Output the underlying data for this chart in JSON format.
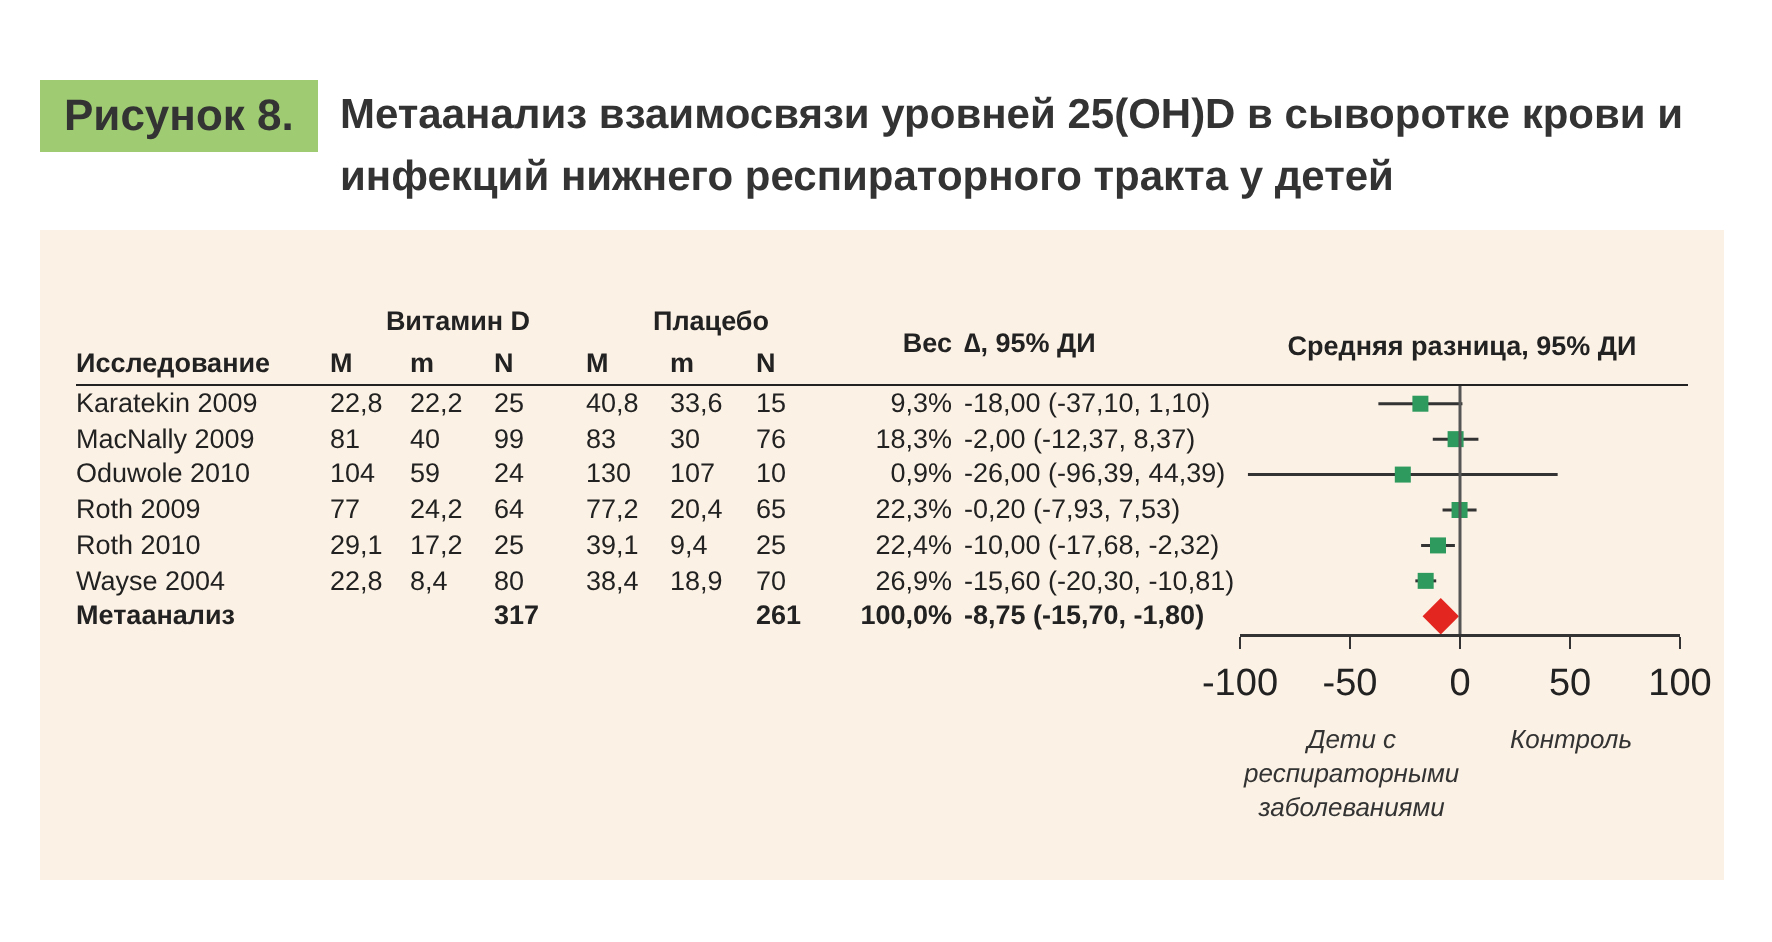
{
  "chart_data": [
    {
      "type": "other",
      "title": "Метаанализ взаимосвязи уровней 25(OH)D в сыворотке крови и инфекций нижнего респираторного тракта у детей",
      "annotations": [
        "Рисунок 8.",
        "Витамин D",
        "Плацебо"
      ],
      "categories": [
        "Исследование",
        "M",
        "m",
        "N",
        "M",
        "m",
        "N",
        "Вес",
        "∆, 95% ДИ"
      ],
      "cells": [
        [
          "Karatekin 2009",
          "22,8",
          "22,2",
          "25",
          "40,8",
          "33,6",
          "15",
          "9,3%",
          "-18,00 (-37,10, 1,10)"
        ],
        [
          "MacNally 2009",
          "81",
          "40",
          "99",
          "83",
          "30",
          "76",
          "18,3%",
          "-2,00 (-12,37, 8,37)"
        ],
        [
          "Oduwole 2010",
          "104",
          "59",
          "24",
          "130",
          "107",
          "10",
          "0,9%",
          "-26,00 (-96,39, 44,39)"
        ],
        [
          "Roth 2009",
          "77",
          "24,2",
          "64",
          "77,2",
          "20,4",
          "65",
          "22,3%",
          "-0,20 (-7,93, 7,53)"
        ],
        [
          "Roth 2010",
          "29,1",
          "17,2",
          "25",
          "39,1",
          "9,4",
          "25",
          "22,4%",
          "-10,00 (-17,68, -2,32)"
        ],
        [
          "Wayse 2004",
          "22,8",
          "8,4",
          "80",
          "38,4",
          "18,9",
          "70",
          "26,9%",
          "-15,60 (-20,30, -10,81)"
        ],
        [
          "Метаанализ",
          null,
          null,
          "317",
          null,
          null,
          "261",
          "100,0%",
          "-8,75 (-15,70, -1,80)"
        ]
      ]
    },
    {
      "type": "scatter",
      "title": "Средняя разница, 95% ДИ",
      "orientation": "horizontal",
      "categories": [
        null,
        null,
        null,
        null,
        null,
        null,
        null
      ],
      "series": [
        {
          "color": "#2e9a5e",
          "marker": "square",
          "values": [
            -18,
            -2,
            -26,
            -0.2,
            -10,
            -15.6,
            null
          ],
          "errors": [
            [
              -37.1,
              1.1
            ],
            [
              -12.37,
              8.37
            ],
            [
              -96.39,
              44.39
            ],
            [
              -7.93,
              7.53
            ],
            [
              -17.68,
              -2.32
            ],
            [
              -20.3,
              -10.81
            ],
            null
          ]
        },
        {
          "color": "#e3261f",
          "marker": "diamond",
          "values": [
            null,
            null,
            null,
            null,
            null,
            null,
            -8.75
          ]
        }
      ],
      "xlim": [
        -100,
        100
      ],
      "xticks": [
        -100,
        -50,
        0,
        50,
        100
      ],
      "tick_labels": "x",
      "ref_lines": [
        {
          "axis": "x",
          "value": 0,
          "color": "#555555"
        }
      ],
      "annotations": [
        "Дети с респираторными заболеваниями",
        "Контроль"
      ]
    }
  ]
}
